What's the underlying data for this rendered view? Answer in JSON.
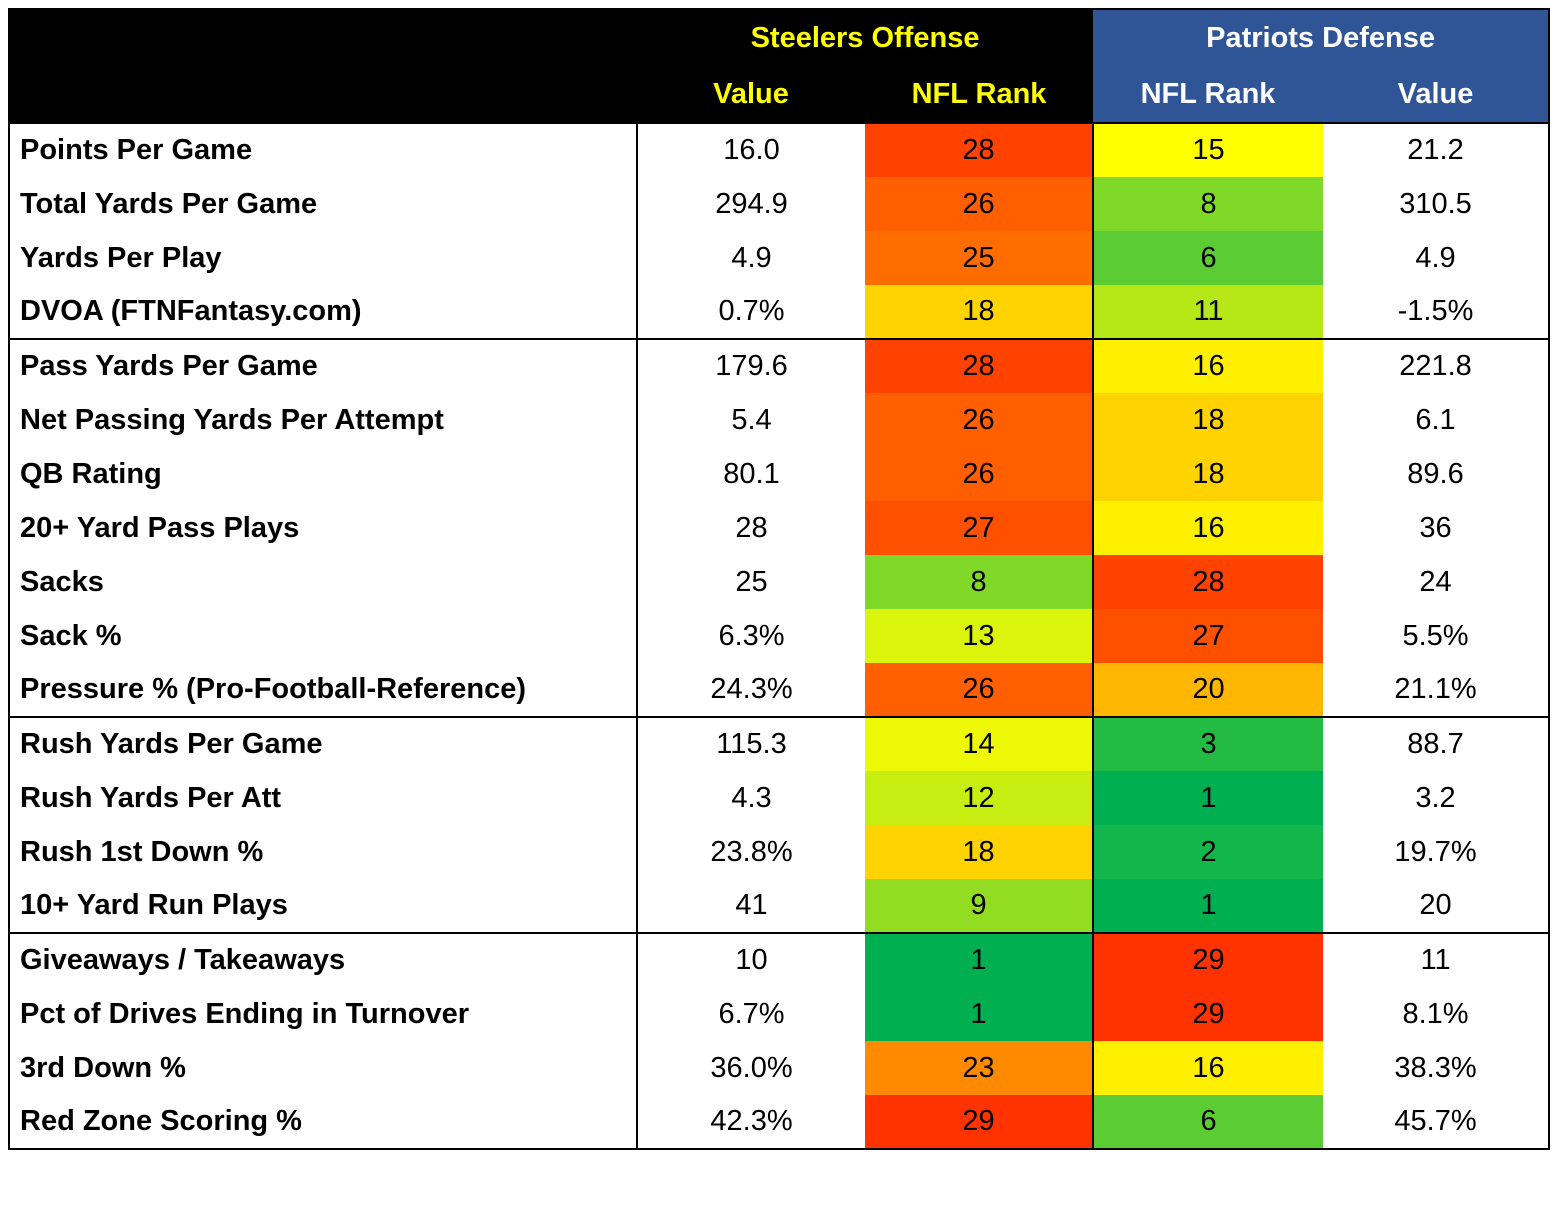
{
  "header": {
    "groups": [
      "Steelers Offense",
      "Patriots Defense"
    ],
    "columns": [
      "Value",
      "NFL Rank",
      "NFL Rank",
      "Value"
    ]
  },
  "sections": [
    {
      "rows": [
        {
          "label": "Points Per Game",
          "cells": [
            "16.0",
            28,
            15,
            "21.2"
          ]
        },
        {
          "label": "Total Yards Per Game",
          "cells": [
            "294.9",
            26,
            8,
            "310.5"
          ]
        },
        {
          "label": "Yards Per Play",
          "cells": [
            "4.9",
            25,
            6,
            "4.9"
          ]
        },
        {
          "label": "DVOA (FTNFantasy.com)",
          "cells": [
            "0.7%",
            18,
            11,
            "-1.5%"
          ]
        }
      ]
    },
    {
      "rows": [
        {
          "label": "Pass Yards Per Game",
          "cells": [
            "179.6",
            28,
            16,
            "221.8"
          ]
        },
        {
          "label": "Net Passing Yards Per Attempt",
          "cells": [
            "5.4",
            26,
            18,
            "6.1"
          ]
        },
        {
          "label": "QB Rating",
          "cells": [
            "80.1",
            26,
            18,
            "89.6"
          ]
        },
        {
          "label": "20+ Yard Pass Plays",
          "cells": [
            "28",
            27,
            16,
            "36"
          ]
        },
        {
          "label": "Sacks",
          "cells": [
            "25",
            8,
            28,
            "24"
          ]
        },
        {
          "label": "Sack %",
          "cells": [
            "6.3%",
            13,
            27,
            "5.5%"
          ]
        },
        {
          "label": "Pressure % (Pro-Football-Reference)",
          "cells": [
            "24.3%",
            26,
            20,
            "21.1%"
          ]
        }
      ]
    },
    {
      "rows": [
        {
          "label": "Rush Yards Per Game",
          "cells": [
            "115.3",
            14,
            3,
            "88.7"
          ]
        },
        {
          "label": "Rush Yards Per Att",
          "cells": [
            "4.3",
            12,
            1,
            "3.2"
          ]
        },
        {
          "label": "Rush 1st Down %",
          "cells": [
            "23.8%",
            18,
            2,
            "19.7%"
          ]
        },
        {
          "label": "10+ Yard Run Plays",
          "cells": [
            "41",
            9,
            1,
            "20"
          ]
        }
      ]
    },
    {
      "rows": [
        {
          "label": "Giveaways / Takeaways",
          "cells": [
            "10",
            1,
            29,
            "11"
          ]
        },
        {
          "label": "Pct of Drives Ending in Turnover",
          "cells": [
            "6.7%",
            1,
            29,
            "8.1%"
          ]
        },
        {
          "label": "3rd Down %",
          "cells": [
            "36.0%",
            23,
            16,
            "38.3%"
          ]
        },
        {
          "label": "Red Zone Scoring %",
          "cells": [
            "42.3%",
            29,
            6,
            "45.7%"
          ]
        }
      ]
    }
  ],
  "rank_colors": {
    "best": "#00b050",
    "middle": "#ffff00",
    "worst": "#ff3300"
  }
}
